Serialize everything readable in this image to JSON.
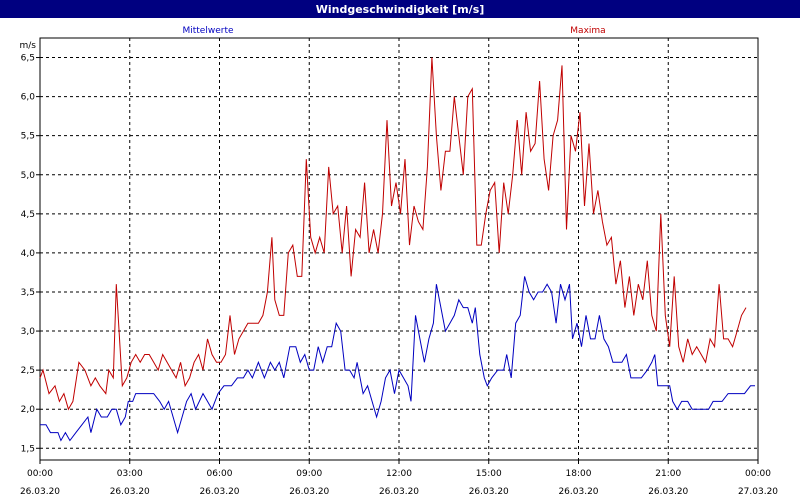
{
  "window": {
    "title": "Windgeschwindigkeit [m/s]"
  },
  "chart_data": {
    "type": "line",
    "title": "Windgeschwindigkeit [m/s]",
    "ylabel": "m/s",
    "ylim": [
      1.35,
      6.75
    ],
    "xlim": [
      0,
      24
    ],
    "grid": true,
    "legend": "top",
    "y_ticks": [
      {
        "v": 1.5,
        "label": "1,5"
      },
      {
        "v": 2.0,
        "label": "2,0"
      },
      {
        "v": 2.5,
        "label": "2,5"
      },
      {
        "v": 3.0,
        "label": "3,0"
      },
      {
        "v": 3.5,
        "label": "3,5"
      },
      {
        "v": 4.0,
        "label": "4,0"
      },
      {
        "v": 4.5,
        "label": "4,5"
      },
      {
        "v": 5.0,
        "label": "5,0"
      },
      {
        "v": 5.5,
        "label": "5,5"
      },
      {
        "v": 6.0,
        "label": "6,0"
      },
      {
        "v": 6.5,
        "label": "6,5"
      }
    ],
    "x_ticks": [
      {
        "v": 0,
        "time": "00:00",
        "date": "26.03.20"
      },
      {
        "v": 3,
        "time": "03:00",
        "date": "26.03.20"
      },
      {
        "v": 6,
        "time": "06:00",
        "date": "26.03.20"
      },
      {
        "v": 9,
        "time": "09:00",
        "date": "26.03.20"
      },
      {
        "v": 12,
        "time": "12:00",
        "date": "26.03.20"
      },
      {
        "v": 15,
        "time": "15:00",
        "date": "26.03.20"
      },
      {
        "v": 18,
        "time": "18:00",
        "date": "26.03.20"
      },
      {
        "v": 21,
        "time": "21:00",
        "date": "26.03.20"
      },
      {
        "v": 24,
        "time": "00:00",
        "date": "27.03.20"
      }
    ],
    "series": [
      {
        "name": "Mittelwerte",
        "color": "#0000c0",
        "points": [
          [
            0.0,
            1.8
          ],
          [
            0.2,
            1.8
          ],
          [
            0.35,
            1.7
          ],
          [
            0.6,
            1.7
          ],
          [
            0.7,
            1.6
          ],
          [
            0.85,
            1.7
          ],
          [
            1.0,
            1.6
          ],
          [
            1.2,
            1.7
          ],
          [
            1.4,
            1.8
          ],
          [
            1.6,
            1.9
          ],
          [
            1.7,
            1.7
          ],
          [
            1.9,
            2.0
          ],
          [
            2.05,
            1.9
          ],
          [
            2.25,
            1.9
          ],
          [
            2.4,
            2.0
          ],
          [
            2.55,
            2.0
          ],
          [
            2.7,
            1.8
          ],
          [
            2.85,
            1.9
          ],
          [
            2.95,
            2.1
          ],
          [
            3.1,
            2.1
          ],
          [
            3.2,
            2.2
          ],
          [
            3.5,
            2.2
          ],
          [
            3.8,
            2.2
          ],
          [
            4.0,
            2.1
          ],
          [
            4.15,
            2.0
          ],
          [
            4.3,
            2.1
          ],
          [
            4.45,
            1.9
          ],
          [
            4.6,
            1.7
          ],
          [
            4.75,
            1.9
          ],
          [
            4.9,
            2.1
          ],
          [
            5.05,
            2.2
          ],
          [
            5.2,
            2.0
          ],
          [
            5.45,
            2.2
          ],
          [
            5.6,
            2.1
          ],
          [
            5.75,
            2.0
          ],
          [
            5.95,
            2.2
          ],
          [
            6.15,
            2.3
          ],
          [
            6.4,
            2.3
          ],
          [
            6.6,
            2.4
          ],
          [
            6.8,
            2.4
          ],
          [
            6.95,
            2.5
          ],
          [
            7.1,
            2.4
          ],
          [
            7.3,
            2.6
          ],
          [
            7.5,
            2.4
          ],
          [
            7.7,
            2.6
          ],
          [
            7.85,
            2.5
          ],
          [
            8.0,
            2.6
          ],
          [
            8.15,
            2.4
          ],
          [
            8.35,
            2.8
          ],
          [
            8.55,
            2.8
          ],
          [
            8.7,
            2.6
          ],
          [
            8.85,
            2.7
          ],
          [
            9.0,
            2.5
          ],
          [
            9.15,
            2.5
          ],
          [
            9.3,
            2.8
          ],
          [
            9.45,
            2.6
          ],
          [
            9.6,
            2.8
          ],
          [
            9.75,
            2.8
          ],
          [
            9.9,
            3.1
          ],
          [
            10.05,
            3.0
          ],
          [
            10.2,
            2.5
          ],
          [
            10.35,
            2.5
          ],
          [
            10.5,
            2.4
          ],
          [
            10.6,
            2.6
          ],
          [
            10.8,
            2.2
          ],
          [
            10.95,
            2.3
          ],
          [
            11.1,
            2.1
          ],
          [
            11.25,
            1.9
          ],
          [
            11.4,
            2.1
          ],
          [
            11.55,
            2.4
          ],
          [
            11.7,
            2.5
          ],
          [
            11.85,
            2.2
          ],
          [
            12.0,
            2.5
          ],
          [
            12.15,
            2.4
          ],
          [
            12.3,
            2.3
          ],
          [
            12.4,
            2.1
          ],
          [
            12.55,
            3.2
          ],
          [
            12.7,
            2.9
          ],
          [
            12.85,
            2.6
          ],
          [
            13.0,
            2.9
          ],
          [
            13.15,
            3.1
          ],
          [
            13.25,
            3.6
          ],
          [
            13.4,
            3.3
          ],
          [
            13.55,
            3.0
          ],
          [
            13.7,
            3.1
          ],
          [
            13.85,
            3.2
          ],
          [
            14.0,
            3.4
          ],
          [
            14.15,
            3.3
          ],
          [
            14.3,
            3.3
          ],
          [
            14.45,
            3.1
          ],
          [
            14.55,
            3.3
          ],
          [
            14.7,
            2.7
          ],
          [
            14.85,
            2.4
          ],
          [
            14.95,
            2.3
          ],
          [
            15.1,
            2.4
          ],
          [
            15.3,
            2.5
          ],
          [
            15.5,
            2.5
          ],
          [
            15.6,
            2.7
          ],
          [
            15.75,
            2.4
          ],
          [
            15.9,
            3.1
          ],
          [
            16.05,
            3.2
          ],
          [
            16.2,
            3.7
          ],
          [
            16.35,
            3.5
          ],
          [
            16.5,
            3.4
          ],
          [
            16.65,
            3.5
          ],
          [
            16.8,
            3.5
          ],
          [
            16.95,
            3.6
          ],
          [
            17.1,
            3.5
          ],
          [
            17.25,
            3.1
          ],
          [
            17.4,
            3.6
          ],
          [
            17.55,
            3.4
          ],
          [
            17.7,
            3.6
          ],
          [
            17.8,
            2.9
          ],
          [
            17.95,
            3.1
          ],
          [
            18.1,
            2.8
          ],
          [
            18.25,
            3.2
          ],
          [
            18.4,
            2.9
          ],
          [
            18.55,
            2.9
          ],
          [
            18.7,
            3.2
          ],
          [
            18.85,
            2.9
          ],
          [
            19.0,
            2.8
          ],
          [
            19.15,
            2.6
          ],
          [
            19.3,
            2.6
          ],
          [
            19.45,
            2.6
          ],
          [
            19.6,
            2.7
          ],
          [
            19.75,
            2.4
          ],
          [
            19.95,
            2.4
          ],
          [
            20.1,
            2.4
          ],
          [
            20.3,
            2.5
          ],
          [
            20.45,
            2.6
          ],
          [
            20.55,
            2.7
          ],
          [
            20.65,
            2.3
          ],
          [
            21.05,
            2.3
          ],
          [
            21.15,
            2.1
          ],
          [
            21.3,
            2.0
          ],
          [
            21.45,
            2.1
          ],
          [
            21.65,
            2.1
          ],
          [
            21.8,
            2.0
          ],
          [
            22.1,
            2.0
          ],
          [
            22.35,
            2.0
          ],
          [
            22.5,
            2.1
          ],
          [
            22.8,
            2.1
          ],
          [
            23.0,
            2.2
          ],
          [
            23.2,
            2.2
          ],
          [
            23.4,
            2.2
          ],
          [
            23.55,
            2.2
          ],
          [
            23.75,
            2.3
          ],
          [
            23.9,
            2.3
          ]
        ]
      },
      {
        "name": "Maxima",
        "color": "#c00000",
        "points": [
          [
            0.0,
            2.4
          ],
          [
            0.1,
            2.5
          ],
          [
            0.3,
            2.2
          ],
          [
            0.5,
            2.3
          ],
          [
            0.65,
            2.1
          ],
          [
            0.8,
            2.2
          ],
          [
            0.95,
            2.0
          ],
          [
            1.1,
            2.1
          ],
          [
            1.3,
            2.6
          ],
          [
            1.5,
            2.5
          ],
          [
            1.7,
            2.3
          ],
          [
            1.85,
            2.4
          ],
          [
            2.0,
            2.3
          ],
          [
            2.2,
            2.2
          ],
          [
            2.3,
            2.5
          ],
          [
            2.45,
            2.4
          ],
          [
            2.55,
            3.6
          ],
          [
            2.75,
            2.3
          ],
          [
            2.9,
            2.4
          ],
          [
            3.05,
            2.6
          ],
          [
            3.2,
            2.7
          ],
          [
            3.35,
            2.6
          ],
          [
            3.5,
            2.7
          ],
          [
            3.65,
            2.7
          ],
          [
            3.8,
            2.6
          ],
          [
            3.95,
            2.5
          ],
          [
            4.1,
            2.7
          ],
          [
            4.25,
            2.6
          ],
          [
            4.4,
            2.5
          ],
          [
            4.55,
            2.4
          ],
          [
            4.7,
            2.6
          ],
          [
            4.85,
            2.3
          ],
          [
            5.0,
            2.4
          ],
          [
            5.15,
            2.6
          ],
          [
            5.3,
            2.7
          ],
          [
            5.45,
            2.5
          ],
          [
            5.6,
            2.9
          ],
          [
            5.75,
            2.7
          ],
          [
            5.9,
            2.6
          ],
          [
            6.05,
            2.6
          ],
          [
            6.2,
            2.7
          ],
          [
            6.35,
            3.2
          ],
          [
            6.5,
            2.7
          ],
          [
            6.65,
            2.9
          ],
          [
            6.8,
            3.0
          ],
          [
            6.95,
            3.1
          ],
          [
            7.1,
            3.1
          ],
          [
            7.3,
            3.1
          ],
          [
            7.45,
            3.2
          ],
          [
            7.6,
            3.5
          ],
          [
            7.75,
            4.2
          ],
          [
            7.85,
            3.4
          ],
          [
            8.0,
            3.2
          ],
          [
            8.15,
            3.2
          ],
          [
            8.3,
            4.0
          ],
          [
            8.45,
            4.1
          ],
          [
            8.6,
            3.7
          ],
          [
            8.75,
            3.7
          ],
          [
            8.9,
            5.2
          ],
          [
            9.05,
            4.2
          ],
          [
            9.2,
            4.0
          ],
          [
            9.35,
            4.2
          ],
          [
            9.5,
            4.0
          ],
          [
            9.65,
            5.1
          ],
          [
            9.8,
            4.5
          ],
          [
            9.95,
            4.6
          ],
          [
            10.1,
            4.0
          ],
          [
            10.25,
            4.6
          ],
          [
            10.4,
            3.7
          ],
          [
            10.55,
            4.3
          ],
          [
            10.7,
            4.2
          ],
          [
            10.85,
            4.9
          ],
          [
            11.0,
            4.0
          ],
          [
            11.15,
            4.3
          ],
          [
            11.3,
            4.0
          ],
          [
            11.45,
            4.5
          ],
          [
            11.6,
            5.7
          ],
          [
            11.75,
            4.6
          ],
          [
            11.9,
            4.9
          ],
          [
            12.05,
            4.5
          ],
          [
            12.2,
            5.2
          ],
          [
            12.35,
            4.1
          ],
          [
            12.5,
            4.6
          ],
          [
            12.65,
            4.4
          ],
          [
            12.8,
            4.3
          ],
          [
            12.95,
            5.1
          ],
          [
            13.1,
            6.5
          ],
          [
            13.25,
            5.5
          ],
          [
            13.4,
            4.8
          ],
          [
            13.55,
            5.3
          ],
          [
            13.7,
            5.3
          ],
          [
            13.85,
            6.0
          ],
          [
            14.0,
            5.5
          ],
          [
            14.15,
            5.0
          ],
          [
            14.3,
            6.0
          ],
          [
            14.45,
            6.1
          ],
          [
            14.6,
            4.1
          ],
          [
            14.75,
            4.1
          ],
          [
            14.9,
            4.5
          ],
          [
            15.05,
            4.8
          ],
          [
            15.2,
            4.9
          ],
          [
            15.35,
            4.0
          ],
          [
            15.5,
            4.9
          ],
          [
            15.65,
            4.5
          ],
          [
            15.8,
            5.0
          ],
          [
            15.95,
            5.7
          ],
          [
            16.1,
            5.0
          ],
          [
            16.25,
            5.8
          ],
          [
            16.4,
            5.3
          ],
          [
            16.55,
            5.4
          ],
          [
            16.7,
            6.2
          ],
          [
            16.85,
            5.2
          ],
          [
            17.0,
            4.8
          ],
          [
            17.15,
            5.5
          ],
          [
            17.3,
            5.7
          ],
          [
            17.45,
            6.4
          ],
          [
            17.6,
            4.3
          ],
          [
            17.75,
            5.5
          ],
          [
            17.9,
            5.3
          ],
          [
            18.05,
            5.8
          ],
          [
            18.2,
            4.6
          ],
          [
            18.35,
            5.4
          ],
          [
            18.5,
            4.5
          ],
          [
            18.65,
            4.8
          ],
          [
            18.8,
            4.4
          ],
          [
            18.95,
            4.1
          ],
          [
            19.1,
            4.2
          ],
          [
            19.25,
            3.6
          ],
          [
            19.4,
            3.9
          ],
          [
            19.55,
            3.3
          ],
          [
            19.7,
            3.7
          ],
          [
            19.85,
            3.2
          ],
          [
            20.0,
            3.6
          ],
          [
            20.15,
            3.4
          ],
          [
            20.3,
            3.9
          ],
          [
            20.45,
            3.2
          ],
          [
            20.6,
            3.0
          ],
          [
            20.75,
            4.5
          ],
          [
            20.9,
            3.2
          ],
          [
            21.05,
            2.8
          ],
          [
            21.2,
            3.7
          ],
          [
            21.35,
            2.8
          ],
          [
            21.5,
            2.6
          ],
          [
            21.65,
            2.9
          ],
          [
            21.8,
            2.7
          ],
          [
            21.95,
            2.8
          ],
          [
            22.1,
            2.7
          ],
          [
            22.25,
            2.6
          ],
          [
            22.4,
            2.9
          ],
          [
            22.55,
            2.8
          ],
          [
            22.7,
            3.6
          ],
          [
            22.85,
            2.9
          ],
          [
            23.0,
            2.9
          ],
          [
            23.15,
            2.8
          ],
          [
            23.3,
            3.0
          ],
          [
            23.45,
            3.2
          ],
          [
            23.6,
            3.3
          ]
        ]
      }
    ]
  }
}
